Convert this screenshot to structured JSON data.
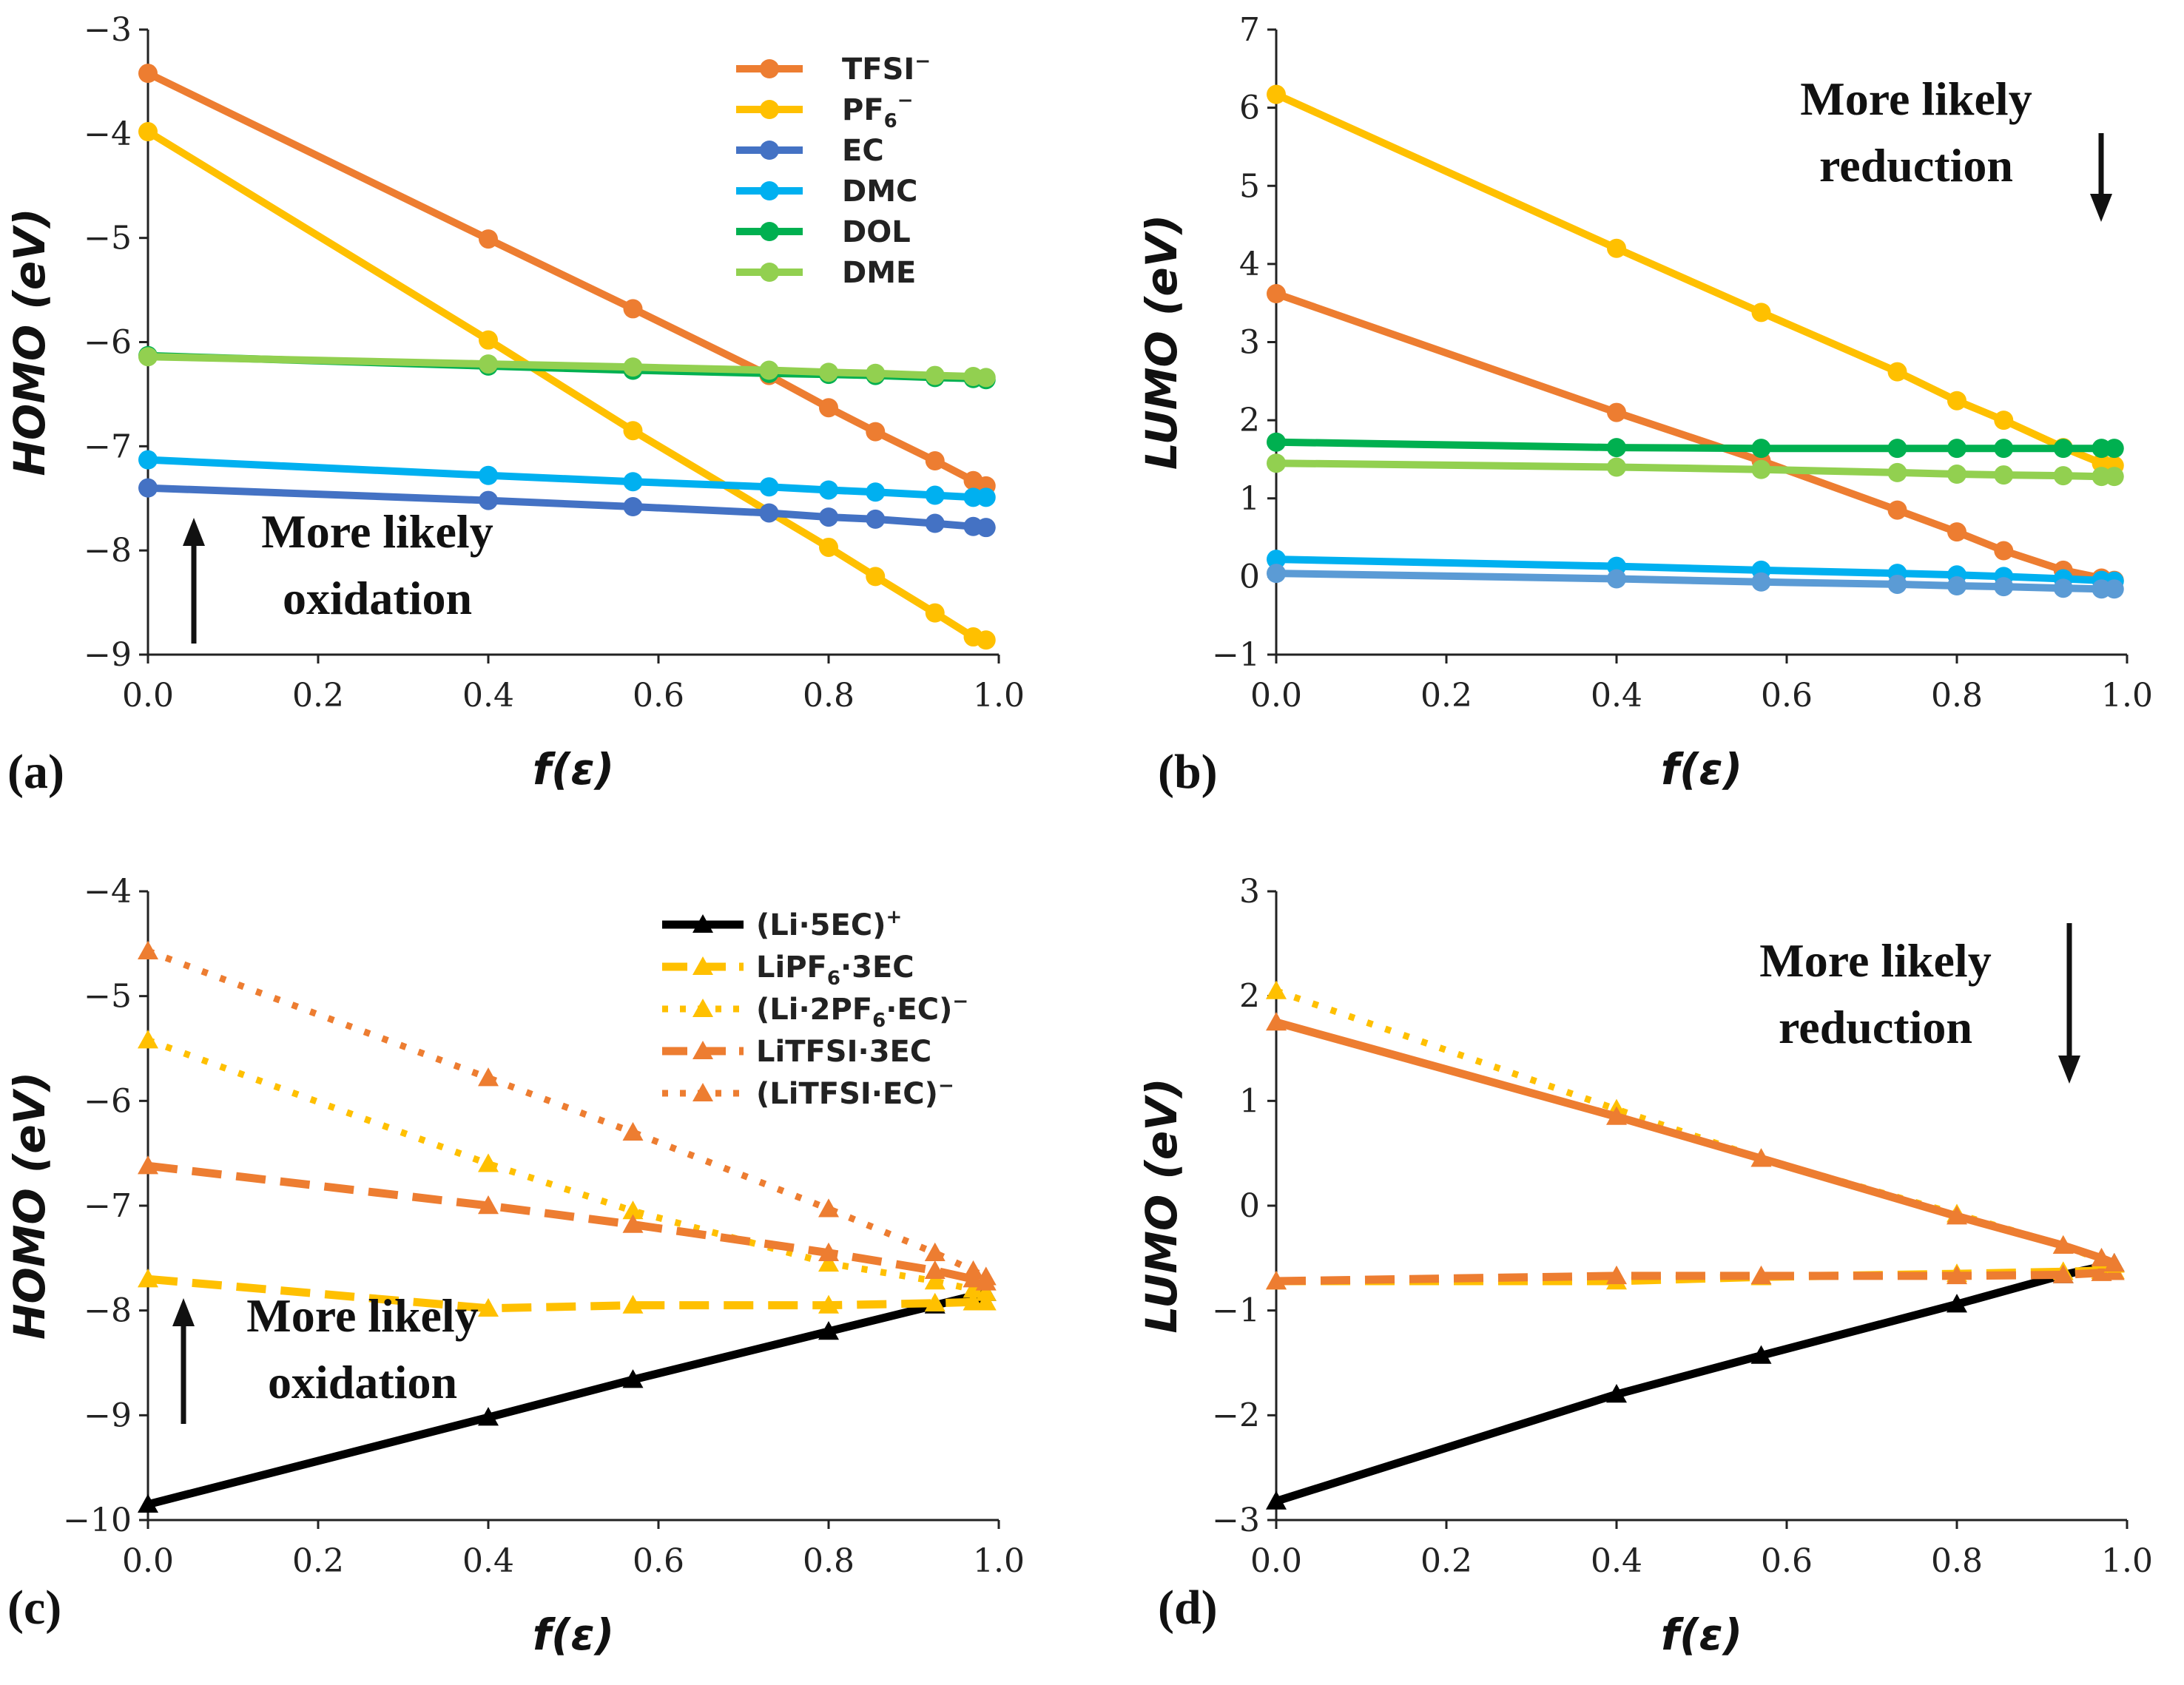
{
  "panels": [
    {
      "label": "(a)",
      "annotation": [
        "More likely",
        "oxidation"
      ],
      "arrow": "up",
      "xlabel": "f(ε)",
      "ylabel": "HOMO (eV)",
      "xlim": [
        0,
        1
      ],
      "ylim": [
        -9,
        -3
      ],
      "xticks": [
        0,
        0.2,
        0.4,
        0.6,
        0.8,
        1.0
      ],
      "xtick_labels": [
        "0.0",
        "0.2",
        "0.4",
        "0.6",
        "0.8",
        "1.0"
      ],
      "yticks": [
        -9,
        -8,
        -7,
        -6,
        -5,
        -4,
        -3
      ],
      "ytick_labels": [
        "−9",
        "−8",
        "−7",
        "−6",
        "−5",
        "−4",
        "−3"
      ]
    },
    {
      "label": "(b)",
      "annotation": [
        "More likely",
        "reduction"
      ],
      "arrow": "down",
      "xlabel": "f(ε)",
      "ylabel": "LUMO (eV)",
      "xlim": [
        0,
        1
      ],
      "ylim": [
        -1,
        7
      ],
      "xticks": [
        0,
        0.2,
        0.4,
        0.6,
        0.8,
        1.0
      ],
      "xtick_labels": [
        "0.0",
        "0.2",
        "0.4",
        "0.6",
        "0.8",
        "1.0"
      ],
      "yticks": [
        -1,
        0,
        1,
        2,
        3,
        4,
        5,
        6,
        7
      ],
      "ytick_labels": [
        "−1",
        "0",
        "1",
        "2",
        "3",
        "4",
        "5",
        "6",
        "7"
      ]
    },
    {
      "label": "(c)",
      "annotation": [
        "More likely",
        "oxidation"
      ],
      "arrow": "up",
      "xlabel": "f(ε)",
      "ylabel": "HOMO (eV)",
      "xlim": [
        0,
        1
      ],
      "ylim": [
        -10,
        -4
      ],
      "xticks": [
        0,
        0.2,
        0.4,
        0.6,
        0.8,
        1.0
      ],
      "xtick_labels": [
        "0.0",
        "0.2",
        "0.4",
        "0.6",
        "0.8",
        "1.0"
      ],
      "yticks": [
        -10,
        -9,
        -8,
        -7,
        -6,
        -5,
        -4
      ],
      "ytick_labels": [
        "−10",
        "−9",
        "−8",
        "−7",
        "−6",
        "−5",
        "−4"
      ]
    },
    {
      "label": "(d)",
      "annotation": [
        "More likely",
        "reduction"
      ],
      "arrow": "down",
      "xlabel": "f(ε)",
      "ylabel": "LUMO (eV)",
      "xlim": [
        0,
        1
      ],
      "ylim": [
        -3,
        3
      ],
      "xticks": [
        0,
        0.2,
        0.4,
        0.6,
        0.8,
        1.0
      ],
      "xtick_labels": [
        "0.0",
        "0.2",
        "0.4",
        "0.6",
        "0.8",
        "1.0"
      ],
      "yticks": [
        -3,
        -2,
        -1,
        0,
        1,
        2,
        3
      ],
      "ytick_labels": [
        "−3",
        "−2",
        "−1",
        "0",
        "1",
        "2",
        "3"
      ]
    }
  ],
  "legend_ab": [
    {
      "main": "TFSI",
      "sup": "−",
      "sub": ""
    },
    {
      "main": "PF",
      "sub": "6",
      "sup": "−"
    },
    {
      "main": "EC",
      "sub": "",
      "sup": ""
    },
    {
      "main": "DMC",
      "sub": "",
      "sup": ""
    },
    {
      "main": "DOL",
      "sub": "",
      "sup": ""
    },
    {
      "main": "DME",
      "sub": "",
      "sup": ""
    }
  ],
  "legend_cd": [
    {
      "pre": "(Li·5EC)",
      "sub": "",
      "post": "",
      "sup": "+"
    },
    {
      "pre": "LiPF",
      "sub": "6",
      "post": "·3EC",
      "sup": ""
    },
    {
      "pre": "(Li·2PF",
      "sub": "6",
      "post": "·EC)",
      "sup": "−"
    },
    {
      "pre": "LiTFSI·3EC",
      "sub": "",
      "post": "",
      "sup": ""
    },
    {
      "pre": "(LiTFSI·EC)",
      "sub": "",
      "post": "",
      "sup": "−"
    }
  ],
  "chart_data": [
    {
      "type": "line",
      "title": "(a)",
      "xlabel": "f(ε)",
      "ylabel": "HOMO (eV)",
      "xlim": [
        0,
        1
      ],
      "ylim": [
        -9,
        -3
      ],
      "series": [
        {
          "name": "TFSI−",
          "color": "#ED7D31",
          "width": 10,
          "dash": "",
          "marker": "circle",
          "x": [
            0,
            0.4,
            0.57,
            0.73,
            0.8,
            0.855,
            0.925,
            0.97,
            0.985
          ],
          "y": [
            -3.42,
            -5.01,
            -5.68,
            -6.32,
            -6.63,
            -6.86,
            -7.14,
            -7.33,
            -7.38
          ]
        },
        {
          "name": "PF6−",
          "color": "#FFC000",
          "width": 10,
          "dash": "",
          "marker": "circle",
          "x": [
            0,
            0.4,
            0.57,
            0.8,
            0.855,
            0.925,
            0.97,
            0.985
          ],
          "y": [
            -3.98,
            -5.98,
            -6.85,
            -7.97,
            -8.25,
            -8.6,
            -8.83,
            -8.86
          ]
        },
        {
          "name": "EC",
          "color": "#4472C4",
          "width": 10,
          "dash": "",
          "marker": "circle",
          "x": [
            0,
            0.4,
            0.57,
            0.73,
            0.8,
            0.855,
            0.925,
            0.97,
            0.985
          ],
          "y": [
            -7.4,
            -7.52,
            -7.58,
            -7.64,
            -7.68,
            -7.7,
            -7.74,
            -7.77,
            -7.78
          ]
        },
        {
          "name": "DMC",
          "color": "#00B0F0",
          "width": 10,
          "dash": "",
          "marker": "circle",
          "x": [
            0,
            0.4,
            0.57,
            0.73,
            0.8,
            0.855,
            0.925,
            0.97,
            0.985
          ],
          "y": [
            -7.13,
            -7.28,
            -7.34,
            -7.39,
            -7.42,
            -7.44,
            -7.47,
            -7.49,
            -7.49
          ]
        },
        {
          "name": "DOL",
          "color": "#00B050",
          "width": 10,
          "dash": "",
          "marker": "circle",
          "x": [
            0,
            0.4,
            0.57,
            0.73,
            0.8,
            0.855,
            0.925,
            0.97,
            0.985
          ],
          "y": [
            -6.13,
            -6.23,
            -6.27,
            -6.3,
            -6.31,
            -6.32,
            -6.34,
            -6.35,
            -6.36
          ]
        },
        {
          "name": "DME",
          "color": "#92D050",
          "width": 10,
          "dash": "",
          "marker": "circle",
          "x": [
            0,
            0.4,
            0.57,
            0.73,
            0.8,
            0.855,
            0.925,
            0.97,
            0.985
          ],
          "y": [
            -6.14,
            -6.21,
            -6.24,
            -6.27,
            -6.29,
            -6.3,
            -6.32,
            -6.33,
            -6.34
          ]
        }
      ]
    },
    {
      "type": "line",
      "title": "(b)",
      "xlabel": "f(ε)",
      "ylabel": "LUMO (eV)",
      "xlim": [
        0,
        1
      ],
      "ylim": [
        -1,
        7
      ],
      "series": [
        {
          "name": "PF6−",
          "color": "#FFC000",
          "width": 10,
          "dash": "",
          "marker": "circle",
          "x": [
            0,
            0.4,
            0.57,
            0.73,
            0.8,
            0.855,
            0.925,
            0.97,
            0.985
          ],
          "y": [
            6.17,
            4.2,
            3.38,
            2.62,
            2.25,
            2.0,
            1.65,
            1.45,
            1.42
          ]
        },
        {
          "name": "TFSI−",
          "color": "#ED7D31",
          "width": 10,
          "dash": "",
          "marker": "circle",
          "x": [
            0,
            0.4,
            0.57,
            0.73,
            0.8,
            0.855,
            0.925,
            0.97,
            0.985
          ],
          "y": [
            3.62,
            2.1,
            1.48,
            0.85,
            0.57,
            0.33,
            0.08,
            -0.02,
            -0.05
          ]
        },
        {
          "name": "DOL",
          "color": "#00B050",
          "width": 10,
          "dash": "",
          "marker": "circle",
          "x": [
            0,
            0.4,
            0.57,
            0.73,
            0.8,
            0.855,
            0.925,
            0.97,
            0.985
          ],
          "y": [
            1.72,
            1.65,
            1.64,
            1.64,
            1.64,
            1.64,
            1.64,
            1.64,
            1.64
          ]
        },
        {
          "name": "DME",
          "color": "#92D050",
          "width": 10,
          "dash": "",
          "marker": "circle",
          "x": [
            0,
            0.4,
            0.57,
            0.73,
            0.8,
            0.855,
            0.925,
            0.97,
            0.985
          ],
          "y": [
            1.45,
            1.4,
            1.37,
            1.33,
            1.31,
            1.3,
            1.29,
            1.28,
            1.28
          ]
        },
        {
          "name": "DMC",
          "color": "#00B0F0",
          "width": 10,
          "dash": "",
          "marker": "circle",
          "x": [
            0,
            0.4,
            0.57,
            0.73,
            0.8,
            0.855,
            0.925,
            0.97,
            0.985
          ],
          "y": [
            0.22,
            0.13,
            0.08,
            0.04,
            0.02,
            0.0,
            -0.03,
            -0.05,
            -0.06
          ]
        },
        {
          "name": "EC",
          "color": "#5B9BD5",
          "width": 10,
          "dash": "",
          "marker": "circle",
          "x": [
            0,
            0.4,
            0.57,
            0.73,
            0.8,
            0.855,
            0.925,
            0.97,
            0.985
          ],
          "y": [
            0.04,
            -0.03,
            -0.07,
            -0.1,
            -0.12,
            -0.13,
            -0.15,
            -0.16,
            -0.16
          ]
        }
      ]
    },
    {
      "type": "line",
      "title": "(c)",
      "xlabel": "f(ε)",
      "ylabel": "HOMO (eV)",
      "xlim": [
        0,
        1
      ],
      "ylim": [
        -10,
        -4
      ],
      "series": [
        {
          "name": "(Li·5EC)+",
          "color": "#000000",
          "width": 11,
          "dash": "",
          "marker": "triangle",
          "x": [
            0,
            0.4,
            0.57,
            0.8,
            0.925,
            0.97,
            0.985
          ],
          "y": [
            -9.85,
            -9.02,
            -8.66,
            -8.2,
            -7.95,
            -7.86,
            -7.83
          ]
        },
        {
          "name": "LiPF6·3EC",
          "color": "#FFC000",
          "width": 11,
          "dash": "40,20",
          "marker": "triangle",
          "x": [
            0,
            0.4,
            0.57,
            0.8,
            0.925,
            0.97,
            0.985
          ],
          "y": [
            -7.7,
            -7.98,
            -7.95,
            -7.95,
            -7.93,
            -7.92,
            -7.92
          ]
        },
        {
          "name": "(Li·2PF6·EC)−",
          "color": "#FFC000",
          "width": 9,
          "dash": "8,18",
          "marker": "triangle",
          "x": [
            0,
            0.4,
            0.57,
            0.8,
            0.925,
            0.97,
            0.985
          ],
          "y": [
            -5.42,
            -6.6,
            -7.05,
            -7.55,
            -7.72,
            -7.8,
            -7.83
          ]
        },
        {
          "name": "LiTFSI·3EC",
          "color": "#ED7D31",
          "width": 11,
          "dash": "40,20",
          "marker": "triangle",
          "x": [
            0,
            0.4,
            0.57,
            0.8,
            0.925,
            0.97,
            0.985
          ],
          "y": [
            -6.62,
            -7.0,
            -7.18,
            -7.45,
            -7.62,
            -7.7,
            -7.73
          ]
        },
        {
          "name": "(LiTFSI·EC)−",
          "color": "#ED7D31",
          "width": 9,
          "dash": "8,18",
          "marker": "triangle",
          "x": [
            0,
            0.4,
            0.57,
            0.8,
            0.925,
            0.97,
            0.985
          ],
          "y": [
            -4.57,
            -5.78,
            -6.3,
            -7.03,
            -7.45,
            -7.62,
            -7.68
          ]
        }
      ]
    },
    {
      "type": "line",
      "title": "(d)",
      "xlabel": "f(ε)",
      "ylabel": "LUMO (eV)",
      "xlim": [
        0,
        1
      ],
      "ylim": [
        -3,
        3
      ],
      "series": [
        {
          "name": "(Li·5EC)+",
          "color": "#000000",
          "width": 11,
          "dash": "",
          "marker": "triangle",
          "x": [
            0,
            0.4,
            0.57,
            0.8,
            0.925,
            0.97,
            0.985
          ],
          "y": [
            -2.82,
            -1.8,
            -1.43,
            -0.94,
            -0.66,
            -0.58,
            -0.55
          ]
        },
        {
          "name": "LiPF6·3EC",
          "color": "#FFC000",
          "width": 11,
          "dash": "40,20",
          "marker": "triangle",
          "x": [
            0,
            0.4,
            0.57,
            0.8,
            0.925,
            0.97,
            0.985
          ],
          "y": [
            -0.72,
            -0.72,
            -0.68,
            -0.65,
            -0.63,
            -0.62,
            -0.62
          ]
        },
        {
          "name": "LiTFSI·3EC",
          "color": "#ED7D31",
          "width": 11,
          "dash": "40,20",
          "marker": "triangle",
          "x": [
            0,
            0.4,
            0.57,
            0.8,
            0.925,
            0.97,
            0.985
          ],
          "y": [
            -0.72,
            -0.67,
            -0.67,
            -0.67,
            -0.66,
            -0.64,
            -0.63
          ]
        },
        {
          "name": "(Li·2PF6·EC)−",
          "color": "#FFC000",
          "width": 9,
          "dash": "8,18",
          "marker": "triangle",
          "x": [
            0,
            0.4,
            0.57,
            0.8,
            0.925,
            0.97,
            0.985
          ],
          "y": [
            2.05,
            0.92,
            0.45,
            -0.08,
            -0.38,
            -0.52,
            -0.56
          ]
        },
        {
          "name": "(LiTFSI·EC)−",
          "color": "#ED7D31",
          "width": 11,
          "dash": "",
          "marker": "triangle",
          "x": [
            0,
            0.4,
            0.57,
            0.8,
            0.925,
            0.97,
            0.985
          ],
          "y": [
            1.75,
            0.85,
            0.45,
            -0.1,
            -0.38,
            -0.5,
            -0.55
          ]
        }
      ]
    }
  ]
}
